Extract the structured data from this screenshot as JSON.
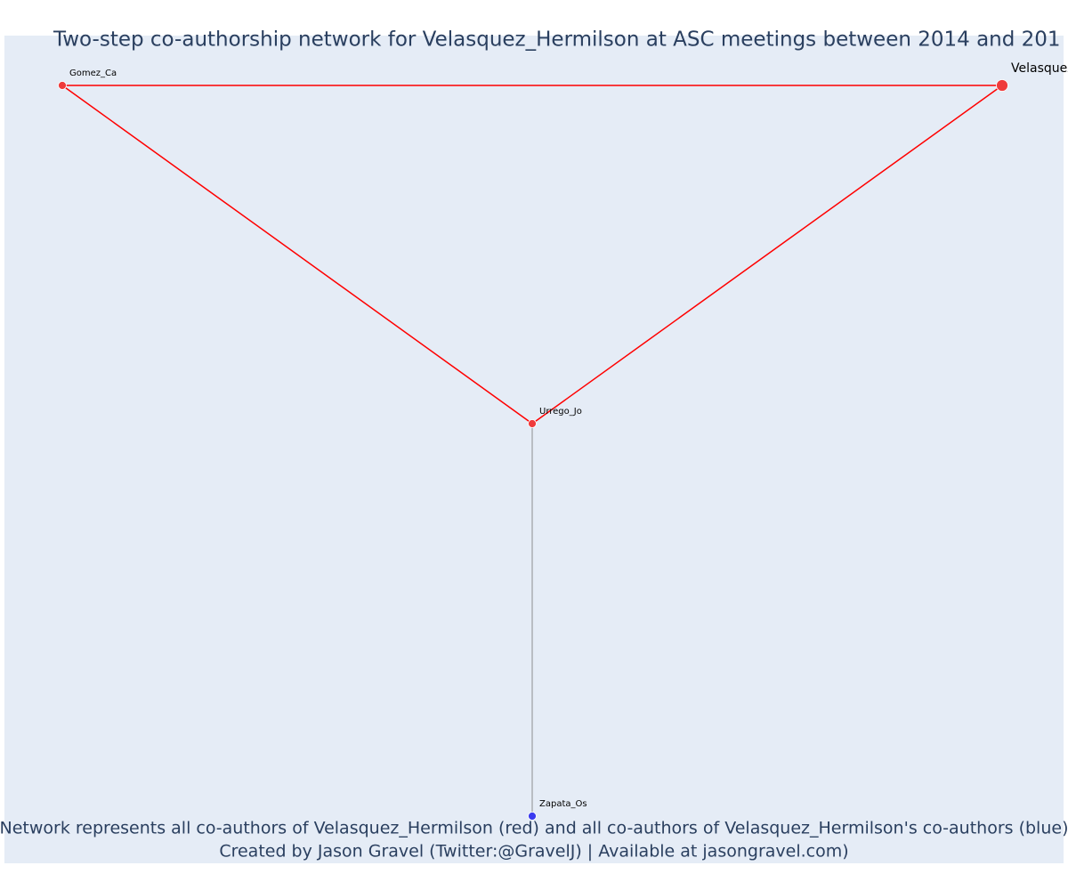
{
  "header": {
    "title": "Two-step co-authorship network for Velasquez_Hermilson at ASC meetings between 2014 and 201"
  },
  "nodes": [
    {
      "label": "Gomez_Ca"
    },
    {
      "label": "Velasquez_Hermilson"
    },
    {
      "label": "Urrego_Jo"
    },
    {
      "label": "Zapata_Os"
    }
  ],
  "footer": {
    "line1": "Network represents all co-authors of Velasquez_Hermilson (red) and all co-authors of Velasquez_Hermilson's co-authors (blue)",
    "line2": "Created by Jason Gravel (Twitter:@GravelJ) | Available at jasongravel.com)"
  }
}
